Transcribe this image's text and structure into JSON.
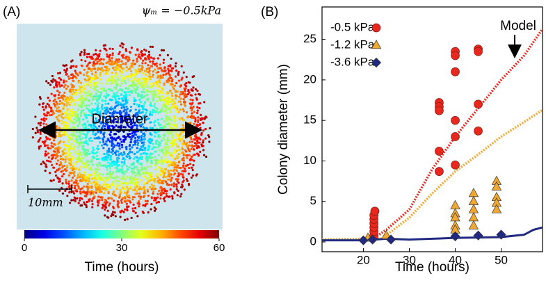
{
  "chart_data": [
    {
      "type": "image",
      "panel_label": "(A)",
      "annotation": "ψₘ = −0.5kPa",
      "arrow_label": "Diameter",
      "scale_label": "10mm",
      "colormap": "jet",
      "clim": [
        0,
        60
      ],
      "cticks": [
        0,
        30,
        60
      ],
      "clabel": "Time (hours)"
    },
    {
      "type": "scatter",
      "panel_label": "(B)",
      "xlabel": "Time (hours)",
      "ylabel": "Colony diameter (mm)",
      "xlim": [
        11,
        59
      ],
      "ylim": [
        -1.2,
        29
      ],
      "xticks": [
        20,
        30,
        40,
        50
      ],
      "yticks": [
        0,
        5,
        10,
        15,
        20,
        25
      ],
      "legend": "upper left",
      "annotation": "Model",
      "series": [
        {
          "name": "-0.5 kPa",
          "color": "#e8281e",
          "marker": "circle",
          "x": [
            22.3,
            22.3,
            22.3,
            22.3,
            22.3,
            22.3,
            22.5,
            36.5,
            36.5,
            36.5,
            36.5,
            36.5,
            40,
            40,
            40,
            40,
            40,
            40,
            45,
            45,
            45,
            45
          ],
          "values": [
            0.8,
            1.3,
            1.8,
            2.3,
            2.8,
            3.3,
            3.8,
            17.2,
            16.7,
            16.2,
            11.2,
            8.7,
            23.5,
            23,
            21,
            15,
            13,
            9.5,
            23.8,
            23.5,
            17,
            13.7
          ]
        },
        {
          "name": "-1.2 kPa",
          "color": "#f0a830",
          "marker": "triangle",
          "x": [
            21,
            25,
            40,
            40,
            40,
            40,
            40,
            44,
            44,
            44,
            44,
            44,
            49,
            49,
            49,
            49,
            49
          ],
          "values": [
            0.5,
            0.8,
            4.5,
            3.5,
            3,
            2,
            1.5,
            6,
            5,
            4,
            3,
            2,
            7.5,
            6.8,
            5.5,
            4.8,
            4
          ]
        },
        {
          "name": "-3.6 kPa",
          "color": "#1f2a80",
          "marker": "diamond",
          "x": [
            20,
            22,
            26,
            40,
            45,
            50
          ],
          "values": [
            0.2,
            0.3,
            0.3,
            0.7,
            0.8,
            0.9
          ]
        }
      ],
      "lines": [
        {
          "color": "#e8281e",
          "style": "dotted",
          "x": [
            11,
            22,
            25,
            30,
            35,
            40,
            45,
            50,
            55,
            59
          ],
          "values": [
            0.3,
            0.4,
            1.5,
            4,
            9,
            13,
            16.5,
            20,
            23,
            26.3
          ]
        },
        {
          "color": "#f0a830",
          "style": "dotted",
          "x": [
            11,
            24,
            30,
            35,
            40,
            45,
            50,
            55,
            59
          ],
          "values": [
            0.3,
            0.4,
            3,
            6,
            8.7,
            10.8,
            13,
            14.8,
            16.3
          ]
        },
        {
          "color": "#1f2a80",
          "style": "solid",
          "x": [
            11,
            20,
            25,
            30,
            40,
            50,
            55,
            57,
            59
          ],
          "values": [
            0.2,
            0.2,
            0.4,
            0.3,
            0.5,
            0.6,
            0.9,
            1.5,
            1.8
          ]
        }
      ]
    }
  ]
}
